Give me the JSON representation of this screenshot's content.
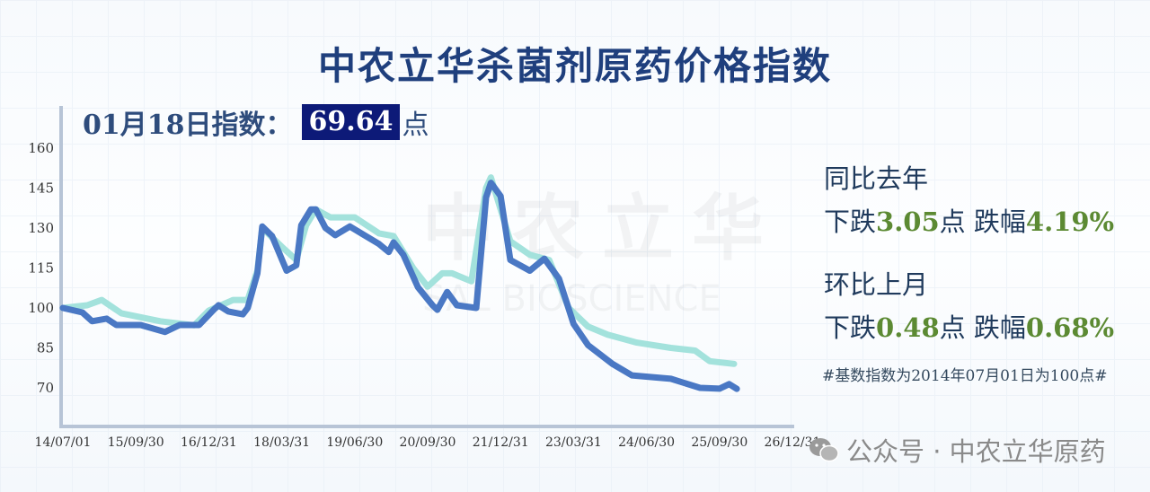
{
  "title": "中农立华杀菌剂原药价格指数",
  "current": {
    "date_label": "01月18日指数：",
    "month": "01",
    "month_unit": "月",
    "day": "18",
    "day_unit": "日指数：",
    "value": "69.64",
    "unit": "点"
  },
  "yoy": {
    "heading": "同比去年",
    "verb": "下跌",
    "points": "3.05",
    "points_unit": "点",
    "pct_label": "跌幅",
    "pct": "4.19%"
  },
  "mom": {
    "heading": "环比上月",
    "verb": "下跌",
    "points": "0.48",
    "points_unit": "点",
    "pct_label": "跌幅",
    "pct": "0.68%"
  },
  "note": "#基数指数为2014年07月01日为100点#",
  "watermark": {
    "cn": "中农立华",
    "en": "SAL BIOSCIENCE"
  },
  "footer": {
    "icon": "wechat-icon",
    "text": "公众号 · 中农立华原药"
  },
  "colors": {
    "title": "#1f3f7d",
    "index_box": "#0d1a78",
    "series_main": "#4a78c4",
    "series_light": "#a3e2dc",
    "change_value": "#5c8a33"
  },
  "chart_data": {
    "type": "line",
    "title": "中农立华杀菌剂原药价格指数",
    "xlabel": "",
    "ylabel": "",
    "ylim": [
      60,
      160
    ],
    "yticks": [
      160,
      145,
      130,
      115,
      100,
      85,
      70
    ],
    "xticks": [
      "14/07/01",
      "15/09/30",
      "16/12/31",
      "18/03/31",
      "19/06/30",
      "20/09/30",
      "21/12/31",
      "23/03/31",
      "24/06/30",
      "25/09/30",
      "26/12/31"
    ],
    "grid": false,
    "series": [
      {
        "color": "#a3e2dc",
        "points": [
          [
            "2014-07",
            100
          ],
          [
            "2014-12",
            101
          ],
          [
            "2015-03",
            103
          ],
          [
            "2015-07",
            98
          ],
          [
            "2016-03",
            95
          ],
          [
            "2016-10",
            93.5
          ],
          [
            "2017-01",
            99
          ],
          [
            "2017-06",
            103
          ],
          [
            "2017-09",
            103
          ],
          [
            "2017-11",
            114
          ],
          [
            "2017-12",
            130
          ],
          [
            "2018-04",
            123
          ],
          [
            "2018-07",
            118
          ],
          [
            "2018-09",
            131
          ],
          [
            "2018-11",
            137
          ],
          [
            "2019-02",
            134
          ],
          [
            "2019-07",
            134
          ],
          [
            "2019-12",
            128
          ],
          [
            "2020-03",
            127
          ],
          [
            "2020-07",
            115
          ],
          [
            "2020-10",
            108
          ],
          [
            "2021-01",
            113
          ],
          [
            "2021-03",
            113
          ],
          [
            "2021-07",
            110
          ],
          [
            "2021-10",
            145
          ],
          [
            "2021-11",
            149
          ],
          [
            "2022-03",
            125
          ],
          [
            "2022-07",
            120
          ],
          [
            "2022-11",
            118
          ],
          [
            "2023-03",
            100
          ],
          [
            "2023-07",
            93
          ],
          [
            "2023-11",
            90
          ],
          [
            "2024-05",
            87
          ],
          [
            "2024-12",
            85
          ],
          [
            "2025-05",
            84
          ],
          [
            "2025-08",
            80
          ],
          [
            "2026-01",
            79
          ]
        ]
      },
      {
        "color": "#4a78c4",
        "points": [
          [
            "2014-07",
            100
          ],
          [
            "2014-11",
            98.3
          ],
          [
            "2015-01",
            95
          ],
          [
            "2015-04",
            96
          ],
          [
            "2015-06",
            93.6
          ],
          [
            "2015-11",
            93.6
          ],
          [
            "2016-04",
            91
          ],
          [
            "2016-07",
            93.6
          ],
          [
            "2016-11",
            93.6
          ],
          [
            "2017-02",
            99.3
          ],
          [
            "2017-03",
            101
          ],
          [
            "2017-05",
            98.7
          ],
          [
            "2017-08",
            97.6
          ],
          [
            "2017-09",
            100
          ],
          [
            "2017-11",
            113
          ],
          [
            "2017-12",
            130.6
          ],
          [
            "2018-02",
            127
          ],
          [
            "2018-05",
            114
          ],
          [
            "2018-07",
            116
          ],
          [
            "2018-08",
            131
          ],
          [
            "2018-10",
            137
          ],
          [
            "2018-11",
            137
          ],
          [
            "2019-01",
            130
          ],
          [
            "2019-03",
            127.3
          ],
          [
            "2019-06",
            130.6
          ],
          [
            "2019-09",
            127.3
          ],
          [
            "2019-12",
            124
          ],
          [
            "2020-02",
            121
          ],
          [
            "2020-03",
            124.6
          ],
          [
            "2020-05",
            120
          ],
          [
            "2020-08",
            107.8
          ],
          [
            "2020-11",
            101
          ],
          [
            "2020-12",
            99.3
          ],
          [
            "2021-02",
            106
          ],
          [
            "2021-04",
            101
          ],
          [
            "2021-08",
            100
          ],
          [
            "2021-10",
            141.5
          ],
          [
            "2021-11",
            147
          ],
          [
            "2022-01",
            142
          ],
          [
            "2022-03",
            118
          ],
          [
            "2022-07",
            114
          ],
          [
            "2022-10",
            118.5
          ],
          [
            "2023-01",
            111
          ],
          [
            "2023-04",
            94
          ],
          [
            "2023-07",
            86
          ],
          [
            "2023-12",
            79
          ],
          [
            "2024-04",
            74.7
          ],
          [
            "2024-12",
            73.4
          ],
          [
            "2025-06",
            70
          ],
          [
            "2025-10",
            69.7
          ],
          [
            "2025-12",
            71.4
          ],
          [
            "2026-01-18",
            69.64
          ]
        ]
      }
    ]
  }
}
